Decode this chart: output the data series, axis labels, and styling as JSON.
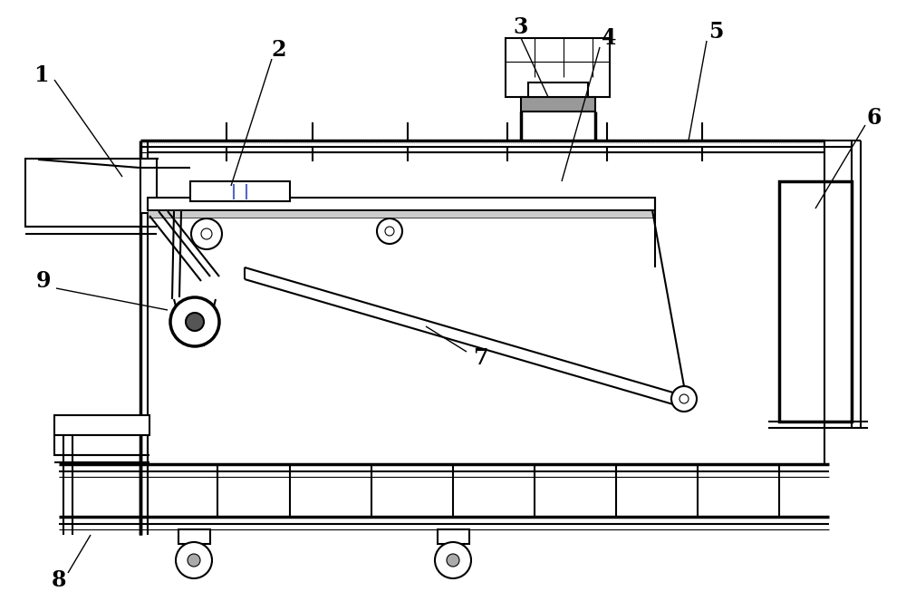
{
  "bg_color": "#ffffff",
  "lc": "#000000",
  "lw": 1.5,
  "tlw": 0.8,
  "thk": 2.5,
  "figsize": [
    10.0,
    6.74
  ]
}
